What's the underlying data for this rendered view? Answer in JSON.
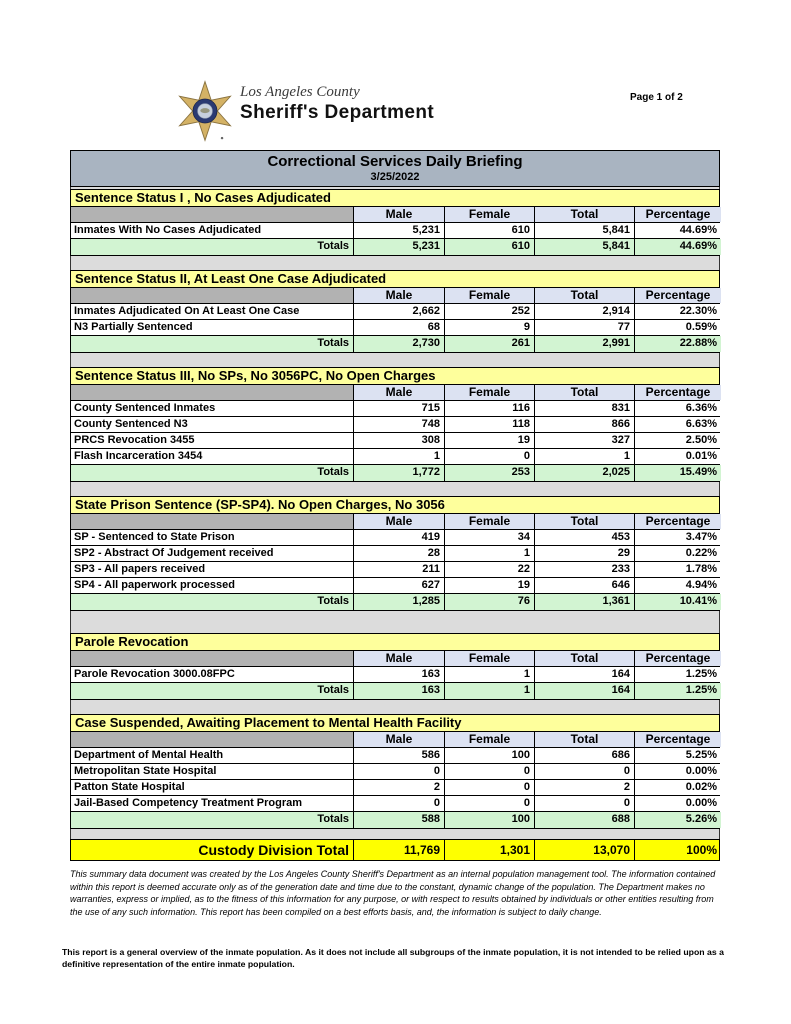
{
  "page": {
    "page_label": "Page 1 of 2"
  },
  "header": {
    "county": "Los Angeles County",
    "department": "Sheriff's Department",
    "logo": "sheriff-six-point-star-badge"
  },
  "title": {
    "main": "Correctional Services Daily Briefing",
    "date": "3/25/2022"
  },
  "columns": [
    "Male",
    "Female",
    "Total",
    "Percentage"
  ],
  "totals_label": "Totals",
  "sections": [
    {
      "title": "Sentence Status I , No Cases Adjudicated",
      "rows": [
        {
          "label": "Inmates With No Cases Adjudicated",
          "male": "5,231",
          "female": "610",
          "total": "5,841",
          "percentage": "44.69%"
        }
      ],
      "totals": {
        "male": "5,231",
        "female": "610",
        "total": "5,841",
        "percentage": "44.69%"
      }
    },
    {
      "title": "Sentence Status II, At Least One Case Adjudicated",
      "rows": [
        {
          "label": "Inmates Adjudicated On At Least One Case",
          "male": "2,662",
          "female": "252",
          "total": "2,914",
          "percentage": "22.30%"
        },
        {
          "label": "N3 Partially Sentenced",
          "male": "68",
          "female": "9",
          "total": "77",
          "percentage": "0.59%"
        }
      ],
      "totals": {
        "male": "2,730",
        "female": "261",
        "total": "2,991",
        "percentage": "22.88%"
      }
    },
    {
      "title": "Sentence Status III, No SPs, No 3056PC, No Open Charges",
      "rows": [
        {
          "label": "County Sentenced Inmates",
          "male": "715",
          "female": "116",
          "total": "831",
          "percentage": "6.36%"
        },
        {
          "label": "County Sentenced N3",
          "male": "748",
          "female": "118",
          "total": "866",
          "percentage": "6.63%"
        },
        {
          "label": "PRCS Revocation 3455",
          "male": "308",
          "female": "19",
          "total": "327",
          "percentage": "2.50%"
        },
        {
          "label": "Flash Incarceration 3454",
          "male": "1",
          "female": "0",
          "total": "1",
          "percentage": "0.01%"
        }
      ],
      "totals": {
        "male": "1,772",
        "female": "253",
        "total": "2,025",
        "percentage": "15.49%"
      }
    },
    {
      "title": "State Prison Sentence (SP-SP4). No Open Charges, No 3056",
      "rows": [
        {
          "label": "SP - Sentenced to State Prison",
          "male": "419",
          "female": "34",
          "total": "453",
          "percentage": "3.47%"
        },
        {
          "label": "SP2 - Abstract Of Judgement received",
          "male": "28",
          "female": "1",
          "total": "29",
          "percentage": "0.22%"
        },
        {
          "label": "SP3 - All papers received",
          "male": "211",
          "female": "22",
          "total": "233",
          "percentage": "1.78%"
        },
        {
          "label": "SP4 - All paperwork processed",
          "male": "627",
          "female": "19",
          "total": "646",
          "percentage": "4.94%"
        }
      ],
      "totals": {
        "male": "1,285",
        "female": "76",
        "total": "1,361",
        "percentage": "10.41%"
      }
    },
    {
      "title": "Parole Revocation",
      "rows": [
        {
          "label": "Parole Revocation 3000.08FPC",
          "male": "163",
          "female": "1",
          "total": "164",
          "percentage": "1.25%"
        }
      ],
      "totals": {
        "male": "163",
        "female": "1",
        "total": "164",
        "percentage": "1.25%"
      }
    },
    {
      "title": "Case Suspended, Awaiting Placement to Mental Health Facility",
      "rows": [
        {
          "label": "Department of Mental Health",
          "male": "586",
          "female": "100",
          "total": "686",
          "percentage": "5.25%"
        },
        {
          "label": "Metropolitan State Hospital",
          "male": "0",
          "female": "0",
          "total": "0",
          "percentage": "0.00%"
        },
        {
          "label": "Patton State Hospital",
          "male": "2",
          "female": "0",
          "total": "2",
          "percentage": "0.02%"
        },
        {
          "label": "Jail-Based Competency Treatment Program",
          "male": "0",
          "female": "0",
          "total": "0",
          "percentage": "0.00%"
        }
      ],
      "totals": {
        "male": "588",
        "female": "100",
        "total": "688",
        "percentage": "5.26%"
      }
    }
  ],
  "grand_total": {
    "label": "Custody Division Total",
    "male": "11,769",
    "female": "1,301",
    "total": "13,070",
    "percentage": "100%"
  },
  "footer": {
    "disclaimer": "This summary data document was created by the Los Angeles County Sheriff's Department as an internal population management tool.  The information contained within this report is deemed accurate only as of the generation date and time due to the constant, dynamic change of the population.  The Department makes no warranties, express or implied, as to the fitness of this information for any purpose, or with respect to results obtained by individuals or other entities resulting from the use of any such information.  This report has been compiled on a best efforts basis, and, the information is subject to daily change.",
    "note": "This report is a general overview of the inmate population.  As it does not include all subgroups of the inmate population, it is not intended to be relied upon as a definitive representation of the entire inmate population."
  },
  "colors": {
    "title_bar_bg": "#a9b4c1",
    "section_header_bg": "#feff9c",
    "column_header_bg": "#dce2f2",
    "column_header_blank_bg": "#b2b2b2",
    "totals_row_bg": "#d2f4d2",
    "grand_total_bg": "#feff00",
    "section_gap_bg": "#dcdcdc",
    "badge_gold": "#d4b265",
    "badge_navy": "#2b3a72"
  }
}
